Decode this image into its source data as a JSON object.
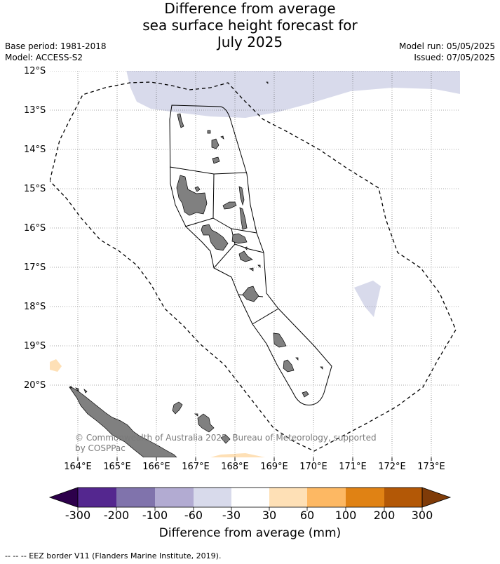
{
  "title": [
    "Difference from average",
    "sea surface height forecast for",
    "July 2025"
  ],
  "left_meta": [
    "Base period: 1981-2018",
    "Model: ACCESS-S2"
  ],
  "right_meta": [
    "Model run: 05/05/2025",
    "Issued: 07/05/2025"
  ],
  "lat_labels": [
    "12°S",
    "13°S",
    "14°S",
    "15°S",
    "16°S",
    "17°S",
    "18°S",
    "19°S",
    "20°S"
  ],
  "lon_labels": [
    "164°E",
    "165°E",
    "166°E",
    "167°E",
    "168°E",
    "169°E",
    "170°E",
    "171°E",
    "172°E",
    "173°E"
  ],
  "copyright": [
    "© Commonwealth of Australia 2025, Bureau of Meteorology, supported",
    "by COSPPac"
  ],
  "colorbar": {
    "title": "Difference from average (mm)",
    "labels": [
      "-300",
      "-200",
      "-100",
      "-60",
      "-30",
      "30",
      "60",
      "100",
      "200",
      "300"
    ],
    "colors": [
      "#54278f",
      "#8073ac",
      "#b2abd2",
      "#d8daeb",
      "#ffffff",
      "#fee0b6",
      "#fdb863",
      "#e08214",
      "#b35806"
    ],
    "under_color": "#2d004b",
    "over_color": "#7f3b08"
  },
  "footnote": "--  --  -- EEZ border V11 (Flanders Marine Institute, 2019)."
}
